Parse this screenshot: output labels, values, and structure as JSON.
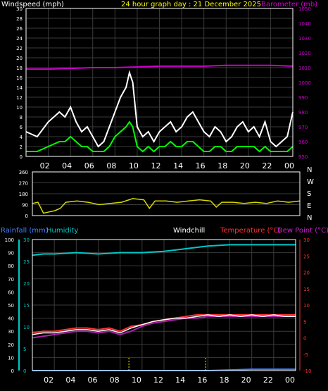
{
  "header": {
    "wind_title": "Windspeed (mph)",
    "date_title": "24 hour graph day : 21 December 2025",
    "baro_title": "Barometer (mb)"
  },
  "labels": {
    "rainfall": "Rainfall (mm)",
    "humidity": "Humidity",
    "windchill": "Windchill",
    "temperature": "Temperature (°C)",
    "dewpoint": "Dew Point (°C)"
  },
  "colors": {
    "background": "#000000",
    "grid": "#3a3a3a",
    "axis": "#ffffff",
    "wind_gust": "#ffffff",
    "wind_avg": "#00ff00",
    "barometer": "#cc00cc",
    "direction": "#d8d800",
    "date_title": "#ffff00",
    "humidity": "#00c8c8",
    "rainfall": "#4080ff",
    "temperature": "#ff3333",
    "dewpoint": "#aa22aa",
    "windchill": "#ffffff",
    "rain_rate": "#ffff00"
  },
  "chart_data": [
    {
      "type": "line",
      "title": "24 hour graph day : 21 December 2025",
      "ylabel": "Windspeed (mph)",
      "y2label": "Barometer (mb)",
      "ylim": [
        0,
        30
      ],
      "y_ticks": [
        0,
        2,
        4,
        6,
        8,
        10,
        12,
        14,
        16,
        18,
        20,
        22,
        24,
        26,
        28,
        30
      ],
      "y2lim": [
        950,
        1050
      ],
      "y2_ticks": [
        950,
        960,
        970,
        980,
        990,
        1000,
        1010,
        1020,
        1030,
        1040,
        1050
      ],
      "xlim": [
        0,
        24
      ],
      "x_tick_labels": [
        "02",
        "04",
        "06",
        "08",
        "10",
        "12",
        "14",
        "16",
        "18",
        "20",
        "22",
        "00"
      ],
      "series": [
        {
          "name": "Barometer",
          "axis": "right",
          "x": [
            0,
            2,
            4,
            6,
            8,
            10,
            12,
            14,
            16,
            18,
            20,
            22,
            24
          ],
          "values": [
            1009,
            1009,
            1009.5,
            1010,
            1010,
            1010.5,
            1011,
            1011,
            1011,
            1011.5,
            1011.5,
            1011.5,
            1011
          ]
        },
        {
          "name": "Windspeed gust",
          "axis": "left",
          "x": [
            0,
            1,
            2,
            3,
            3.5,
            4,
            4.5,
            5,
            5.5,
            6,
            6.5,
            7,
            7.5,
            8,
            8.5,
            9,
            9.3,
            9.6,
            10,
            10.5,
            11,
            11.5,
            12,
            12.5,
            13,
            13.5,
            14,
            14.5,
            15,
            15.5,
            16,
            16.5,
            17,
            17.5,
            18,
            18.5,
            19,
            19.5,
            20,
            20.5,
            21,
            21.5,
            22,
            22.5,
            23,
            23.5,
            24
          ],
          "values": [
            5,
            4,
            7,
            9,
            8,
            10,
            7,
            5,
            6,
            4,
            2,
            3,
            6,
            9,
            12,
            14,
            17,
            15,
            6,
            4,
            5,
            3,
            5,
            6,
            7,
            5,
            6,
            8,
            9,
            7,
            5,
            4,
            6,
            5,
            3,
            4,
            6,
            7,
            5,
            6,
            4,
            7,
            3,
            2,
            3,
            4,
            9
          ]
        },
        {
          "name": "Windspeed average",
          "axis": "left",
          "x": [
            0,
            1,
            2,
            3,
            3.5,
            4,
            4.5,
            5,
            5.5,
            6,
            6.5,
            7,
            7.5,
            8,
            8.5,
            9,
            9.3,
            9.6,
            10,
            10.5,
            11,
            11.5,
            12,
            12.5,
            13,
            13.5,
            14,
            14.5,
            15,
            15.5,
            16,
            16.5,
            17,
            17.5,
            18,
            18.5,
            19,
            19.5,
            20,
            20.5,
            21,
            21.5,
            22,
            22.5,
            23,
            23.5,
            24
          ],
          "values": [
            1,
            1,
            2,
            3,
            3,
            4,
            3,
            2,
            2,
            1,
            1,
            1,
            2,
            4,
            5,
            6,
            7,
            6,
            2,
            1,
            2,
            1,
            2,
            2,
            3,
            2,
            2,
            3,
            3,
            2,
            1,
            1,
            2,
            2,
            1,
            1,
            2,
            2,
            2,
            2,
            1,
            2,
            1,
            1,
            1,
            1,
            2
          ]
        }
      ]
    },
    {
      "type": "line",
      "title": "",
      "ylabel": "Wind direction",
      "ylim": [
        0,
        360
      ],
      "y_ticks": [
        0,
        90,
        180,
        270,
        360
      ],
      "compass_labels": [
        "N",
        "W",
        "S",
        "E",
        "N"
      ],
      "xlim": [
        0,
        24
      ],
      "series": [
        {
          "name": "Direction",
          "x": [
            0,
            0.5,
            1,
            1.5,
            2,
            2.5,
            3,
            4,
            5,
            6,
            7,
            8,
            9,
            10,
            10.5,
            11,
            12,
            13,
            14,
            15,
            16,
            16.5,
            17,
            18,
            19,
            20,
            21,
            22,
            23,
            24
          ],
          "values": [
            100,
            110,
            20,
            30,
            40,
            60,
            110,
            120,
            110,
            90,
            100,
            110,
            140,
            130,
            60,
            120,
            120,
            110,
            120,
            130,
            120,
            70,
            110,
            110,
            100,
            110,
            100,
            120,
            110,
            120
          ]
        }
      ]
    },
    {
      "type": "line",
      "title": "",
      "ylabel": "Rainfall (mm)",
      "ylim": [
        0,
        100
      ],
      "y_ticks": [
        0,
        10,
        20,
        30,
        40,
        50,
        60,
        70,
        80,
        90,
        100
      ],
      "inner_axis_label": "Humidity",
      "inner_ylim": [
        0,
        30
      ],
      "inner_y_ticks": [
        0,
        5,
        10,
        15,
        20,
        25,
        30
      ],
      "y2label": "Temperature (°C)",
      "y2lim": [
        -10,
        30
      ],
      "y2_ticks": [
        -10,
        -5,
        0,
        5,
        10,
        15,
        20,
        25,
        30
      ],
      "xlim": [
        0,
        24
      ],
      "x_tick_labels": [
        "02",
        "04",
        "06",
        "08",
        "10",
        "12",
        "14",
        "16",
        "18",
        "20",
        "22",
        "00"
      ],
      "series": [
        {
          "name": "Humidity",
          "axis": "left",
          "x": [
            0,
            1,
            2,
            4,
            6,
            8,
            10,
            12,
            14,
            16,
            18,
            20,
            22,
            24
          ],
          "values": [
            88,
            89,
            89,
            90,
            89,
            90,
            90,
            91,
            93,
            95,
            96,
            96,
            96,
            96
          ]
        },
        {
          "name": "Temperature",
          "axis": "right",
          "x": [
            0,
            1,
            2,
            3,
            4,
            5,
            6,
            7,
            8,
            9,
            10,
            11,
            12,
            13,
            14,
            15,
            16,
            17,
            18,
            19,
            20,
            21,
            22,
            23,
            24
          ],
          "values": [
            1.5,
            2,
            2,
            2.5,
            3,
            3,
            2.5,
            3,
            2,
            3.5,
            4,
            5,
            5.5,
            6,
            6.5,
            7,
            7,
            7,
            7,
            7,
            7,
            7,
            7,
            7,
            7
          ]
        },
        {
          "name": "Dew Point",
          "axis": "right",
          "x": [
            0,
            1,
            2,
            3,
            4,
            5,
            6,
            7,
            8,
            9,
            10,
            11,
            12,
            13,
            14,
            15,
            16,
            17,
            18,
            19,
            20,
            21,
            22,
            23,
            24
          ],
          "values": [
            0,
            0.5,
            1,
            1.5,
            2,
            2,
            1.5,
            2,
            1,
            2,
            3.5,
            4.5,
            5,
            5.5,
            6,
            6,
            6.5,
            6.5,
            6.5,
            6.5,
            6.5,
            6.5,
            6.5,
            6.5,
            6.5
          ]
        },
        {
          "name": "Windchill",
          "axis": "right",
          "x": [
            0,
            1,
            2,
            3,
            4,
            5,
            6,
            7,
            8,
            9,
            10,
            11,
            12,
            13,
            14,
            15,
            16,
            17,
            18,
            19,
            20,
            21,
            22,
            23,
            24
          ],
          "values": [
            1,
            1.5,
            1.5,
            2,
            2.5,
            2.5,
            2,
            2.5,
            1.5,
            3,
            4,
            5,
            5.5,
            6,
            6,
            6.5,
            7,
            6.5,
            7,
            6.5,
            7,
            6.5,
            7,
            6.5,
            6.5
          ]
        },
        {
          "name": "Rainfall",
          "axis": "left",
          "x": [
            0,
            6,
            12,
            16,
            18,
            20,
            22,
            24
          ],
          "values": [
            0,
            0,
            0,
            0,
            0.5,
            1,
            1,
            1
          ]
        },
        {
          "name": "Rain rate",
          "axis": "left",
          "x": [
            8.8,
            15.8
          ],
          "values": [
            10,
            10
          ]
        }
      ]
    }
  ]
}
